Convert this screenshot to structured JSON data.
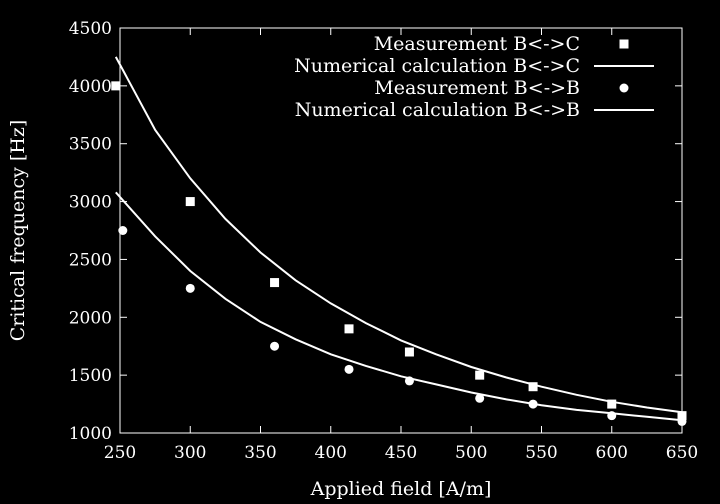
{
  "chart_data": {
    "type": "scatter",
    "xlabel": "Applied field [A/m]",
    "ylabel": "Critical frequency [Hz]",
    "xlim": [
      250,
      650
    ],
    "ylim": [
      1000,
      4500
    ],
    "x_ticks": [
      250,
      300,
      350,
      400,
      450,
      500,
      550,
      600,
      650
    ],
    "y_ticks": [
      1000,
      1500,
      2000,
      2500,
      3000,
      3500,
      4000,
      4500
    ],
    "grid": false,
    "legend_position": "top-right",
    "colors": {
      "background": "#000000",
      "foreground": "#ffffff"
    },
    "series": [
      {
        "name": "Measurement B<->C",
        "kind": "points",
        "marker": "square",
        "x": [
          247,
          300,
          360,
          413,
          456,
          506,
          544,
          600,
          650
        ],
        "y": [
          4000,
          3000,
          2300,
          1900,
          1700,
          1500,
          1400,
          1250,
          1150
        ]
      },
      {
        "name": "Numerical calculation B<->C",
        "kind": "line",
        "x": [
          247,
          275,
          300,
          325,
          350,
          375,
          400,
          425,
          450,
          475,
          500,
          525,
          550,
          575,
          600,
          625,
          650
        ],
        "y": [
          4250,
          3620,
          3200,
          2850,
          2560,
          2320,
          2120,
          1950,
          1800,
          1680,
          1570,
          1480,
          1400,
          1330,
          1270,
          1220,
          1180
        ]
      },
      {
        "name": "Measurement B<->B",
        "kind": "points",
        "marker": "circle",
        "x": [
          252,
          300,
          360,
          413,
          456,
          506,
          544,
          600,
          650
        ],
        "y": [
          2750,
          2250,
          1750,
          1550,
          1450,
          1300,
          1250,
          1150,
          1100
        ]
      },
      {
        "name": "Numerical calculation B<->B",
        "kind": "line",
        "x": [
          247,
          275,
          300,
          325,
          350,
          375,
          400,
          425,
          450,
          475,
          500,
          525,
          550,
          575,
          600,
          625,
          650
        ],
        "y": [
          3080,
          2700,
          2400,
          2160,
          1960,
          1810,
          1680,
          1580,
          1490,
          1420,
          1350,
          1290,
          1240,
          1200,
          1170,
          1140,
          1110
        ]
      }
    ]
  }
}
